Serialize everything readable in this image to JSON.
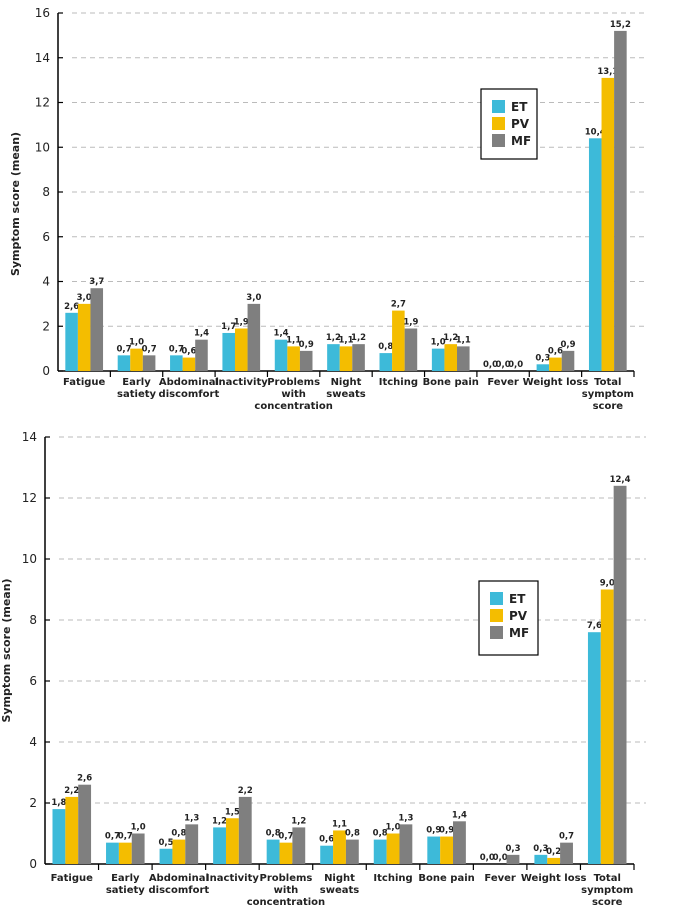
{
  "chart_data": [
    {
      "type": "bar",
      "title": "",
      "xlabel": "",
      "ylabel": "Symptom score (mean)",
      "ylim": [
        0,
        16
      ],
      "yticks": [
        0,
        2,
        4,
        6,
        8,
        10,
        12,
        14,
        16
      ],
      "grid": true,
      "legend_position": "center-right",
      "categories": [
        [
          "Fatigue"
        ],
        [
          "Early",
          "satiety"
        ],
        [
          "Abdominal",
          "discomfort"
        ],
        [
          "Inactivity"
        ],
        [
          "Problems",
          "with",
          "concentration"
        ],
        [
          "Night",
          "sweats"
        ],
        [
          "Itching"
        ],
        [
          "Bone pain"
        ],
        [
          "Fever"
        ],
        [
          "Weight loss"
        ],
        [
          "Total",
          "symptom",
          "score"
        ]
      ],
      "series": [
        {
          "name": "ET",
          "color": "#3DBAD9",
          "values": [
            2.6,
            0.7,
            0.7,
            1.7,
            1.4,
            1.2,
            0.8,
            1.0,
            0.0,
            0.3,
            10.4
          ],
          "labels": [
            "2,6",
            "0,7",
            "0,7",
            "1,7",
            "1,4",
            "1,2",
            "0,8",
            "1,0",
            "0,0",
            "0,3",
            "10,4"
          ]
        },
        {
          "name": "PV",
          "color": "#F4BD00",
          "values": [
            3.0,
            1.0,
            0.6,
            1.9,
            1.1,
            1.1,
            2.7,
            1.2,
            0.0,
            0.6,
            13.1
          ],
          "labels": [
            "3,0",
            "1,0",
            "0,6",
            "1,9",
            "1,1",
            "1,1",
            "2,7",
            "1,2",
            "0,0",
            "0,6",
            "13,1"
          ]
        },
        {
          "name": "MF",
          "color": "#7F7F7F",
          "values": [
            3.7,
            0.7,
            1.4,
            3.0,
            0.9,
            1.2,
            1.9,
            1.1,
            0.0,
            0.9,
            15.2
          ],
          "labels": [
            "3,7",
            "0,7",
            "1,4",
            "3,0",
            "0,9",
            "1,2",
            "1,9",
            "1,1",
            "0,0",
            "0,9",
            "15,2"
          ]
        }
      ]
    },
    {
      "type": "bar",
      "title": "",
      "xlabel": "",
      "ylabel": "Symptom score (mean)",
      "ylim": [
        0,
        14
      ],
      "yticks": [
        0,
        2,
        4,
        6,
        8,
        10,
        12,
        14
      ],
      "grid": true,
      "legend_position": "center-right",
      "categories": [
        [
          "Fatigue"
        ],
        [
          "Early",
          "satiety"
        ],
        [
          "Abdominal",
          "discomfort"
        ],
        [
          "Inactivity"
        ],
        [
          "Problems",
          "with",
          "concentration"
        ],
        [
          "Night",
          "sweats"
        ],
        [
          "Itching"
        ],
        [
          "Bone pain"
        ],
        [
          "Fever"
        ],
        [
          "Weight loss"
        ],
        [
          "Total",
          "symptom",
          "score"
        ]
      ],
      "series": [
        {
          "name": "ET",
          "color": "#3DBAD9",
          "values": [
            1.8,
            0.7,
            0.5,
            1.2,
            0.8,
            0.6,
            0.8,
            0.9,
            0.0,
            0.3,
            7.6
          ],
          "labels": [
            "1,8",
            "0,7",
            "0,5",
            "1,2",
            "0,8",
            "0,6",
            "0,8",
            "0,9",
            "0,0",
            "0,3",
            "7,6"
          ]
        },
        {
          "name": "PV",
          "color": "#F4BD00",
          "values": [
            2.2,
            0.7,
            0.8,
            1.5,
            0.7,
            1.1,
            1.0,
            0.9,
            0.0,
            0.2,
            9.0
          ],
          "labels": [
            "2,2",
            "0,7",
            "0,8",
            "1,5",
            "0,7",
            "1,1",
            "1,0",
            "0,9",
            "0,0",
            "0,2",
            "9,0"
          ]
        },
        {
          "name": "MF",
          "color": "#7F7F7F",
          "values": [
            2.6,
            1.0,
            1.3,
            2.2,
            1.2,
            0.8,
            1.3,
            1.4,
            0.3,
            0.7,
            12.4
          ],
          "labels": [
            "2,6",
            "1,0",
            "1,3",
            "2,2",
            "1,2",
            "0,8",
            "1,3",
            "1,4",
            "0,3",
            "0,7",
            "12,4"
          ]
        }
      ]
    }
  ]
}
